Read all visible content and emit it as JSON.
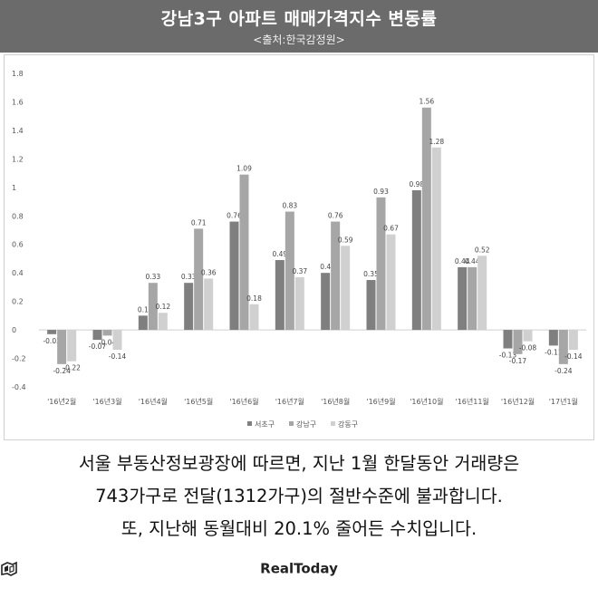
{
  "header": {
    "title": "강남3구 아파트 매매가격지수 변동률",
    "subtitle": "<출처:한국감정원>"
  },
  "chart_data": {
    "type": "bar",
    "title": "강남3구 아파트 매매가격지수 변동률",
    "subtitle": "<출처:한국감정원>",
    "categories": [
      "'16년2월",
      "'16년3월",
      "'16년4월",
      "'16년5월",
      "'16년6월",
      "'16년7월",
      "'16년8월",
      "'16년9월",
      "'16년10월",
      "'16년11월",
      "'16년12월",
      "'17년1월"
    ],
    "series": [
      {
        "name": "서초구",
        "color": "#7f7f7f",
        "values": [
          -0.03,
          -0.07,
          0.1,
          0.33,
          0.76,
          0.49,
          0.4,
          0.35,
          0.98,
          0.44,
          -0.13,
          -0.11
        ]
      },
      {
        "name": "강남구",
        "color": "#a6a6a6",
        "values": [
          -0.24,
          -0.04,
          0.33,
          0.71,
          1.09,
          0.83,
          0.76,
          0.93,
          1.56,
          0.44,
          -0.17,
          -0.24
        ]
      },
      {
        "name": "강동구",
        "color": "#d0d0d0",
        "values": [
          -0.22,
          -0.14,
          0.12,
          0.36,
          0.18,
          0.37,
          0.59,
          0.67,
          1.28,
          0.52,
          -0.08,
          -0.14
        ]
      }
    ],
    "value_labels": [
      [
        "-0.03",
        "-0.07",
        "0.1",
        "0.33",
        "0.76",
        "0.49",
        "0.4",
        "0.35",
        "0.98",
        "0.44",
        "-0.13",
        "-0.11"
      ],
      [
        "-0.24",
        "-0.04",
        "0.33",
        "0.71",
        "1.09",
        "0.83",
        "0.76",
        "0.93",
        "1.56",
        "0.44",
        "-0.17",
        "-0.24"
      ],
      [
        "-0.22",
        "-0.14",
        "0.12",
        "0.36",
        "0.18",
        "0.37",
        "0.59",
        "0.67",
        "1.28",
        "0.52",
        "-0.08",
        "-0.14"
      ]
    ],
    "yticks": [
      "1.8",
      "1.6",
      "1.4",
      "1.2",
      "1",
      "0.8",
      "0.6",
      "0.4",
      "0.2",
      "0",
      "-0.2",
      "-0.4"
    ],
    "ylim": [
      -0.4,
      1.8
    ],
    "grid": false,
    "legend": "bottom"
  },
  "caption": {
    "line1": "서울 부동산정보광장에 따르면, 지난 1월 한달동안 거래량은",
    "line2": "743가구로 전달(1312가구)의 절반수준에 불과합니다.",
    "line3": "또, 지난해 동월대비 20.1% 줄어든 수치입니다."
  },
  "brand": {
    "name": "RealToday"
  }
}
